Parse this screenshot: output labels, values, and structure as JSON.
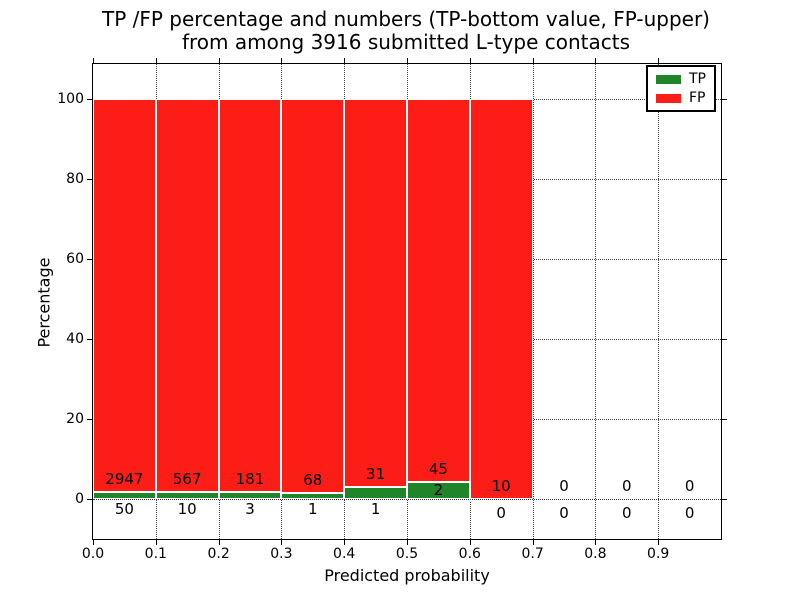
{
  "title": {
    "line1": "TP /FP percentage and numbers (TP-bottom value, FP-upper)",
    "line2": "from among 3916 submitted L-type contacts"
  },
  "chart_data": {
    "type": "bar",
    "stacked": true,
    "normalized_to_percent": true,
    "bin_width": 0.1,
    "bins": [
      "0.0-0.1",
      "0.1-0.2",
      "0.2-0.3",
      "0.3-0.4",
      "0.4-0.5",
      "0.5-0.6",
      "0.6-0.7",
      "0.7-0.8",
      "0.8-0.9",
      "0.9-1.0"
    ],
    "series": [
      {
        "name": "TP",
        "color": "#208429",
        "values": [
          50,
          10,
          3,
          1,
          1,
          2,
          0,
          0,
          0,
          0
        ]
      },
      {
        "name": "FP",
        "color": "#fc1d17",
        "values": [
          2947,
          567,
          181,
          68,
          31,
          45,
          10,
          0,
          0,
          0
        ]
      }
    ],
    "total_contacts": 3916,
    "xlabel": "Predicted probability",
    "ylabel": "Percentage",
    "x_ticks": [
      "0.0",
      "0.1",
      "0.2",
      "0.3",
      "0.4",
      "0.5",
      "0.6",
      "0.7",
      "0.8",
      "0.9"
    ],
    "x_tick_values": [
      0.0,
      0.1,
      0.2,
      0.3,
      0.4,
      0.5,
      0.6,
      0.7,
      0.8,
      0.9
    ],
    "y_ticks": [
      "0",
      "20",
      "40",
      "60",
      "80",
      "100"
    ],
    "y_tick_values": [
      0,
      20,
      40,
      60,
      80,
      100
    ],
    "xlim": [
      0.0,
      1.0
    ],
    "ylim": [
      0,
      100
    ],
    "grid": "dotted",
    "legend": {
      "position": "upper right",
      "entries": [
        "TP",
        "FP"
      ]
    }
  }
}
